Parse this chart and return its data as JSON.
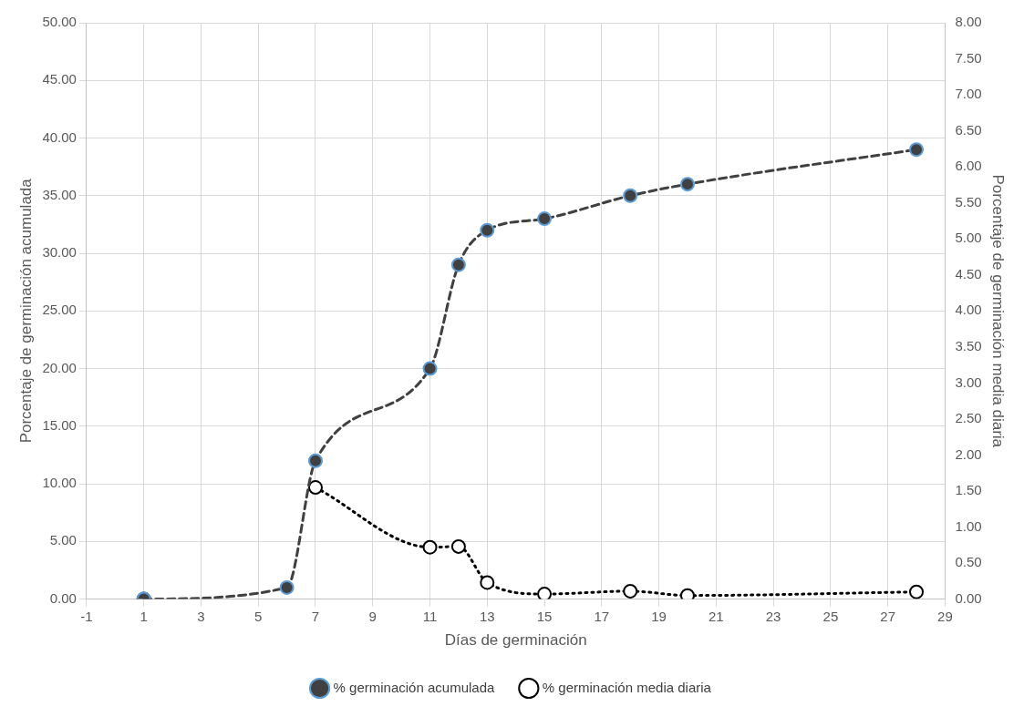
{
  "chart_data": {
    "type": "line",
    "xlabel": "Días de germinación",
    "ylabel": "Porcentaje de germinación acumulada",
    "y2label": "Porcentaje de germinación media diaria",
    "x": [
      1,
      6,
      7,
      11,
      12,
      13,
      15,
      18,
      20,
      28
    ],
    "series": [
      {
        "name": "% germinación acumulada",
        "color": "#404040",
        "line_style": "dashed",
        "values": [
          0,
          1,
          12,
          20,
          29,
          32,
          33,
          35,
          36,
          39
        ]
      },
      {
        "name": "% germinación media diaria",
        "color": "#000000",
        "line_style": "dotted",
        "axis": "y2",
        "values": [
          0,
          null,
          1.55,
          0.72,
          0.73,
          0.23,
          0.07,
          0.11,
          0.05,
          0.1
        ]
      }
    ],
    "xlim": [
      -1,
      29
    ],
    "xticks": [
      -1,
      1,
      3,
      5,
      7,
      9,
      11,
      13,
      15,
      17,
      19,
      21,
      23,
      25,
      27,
      29
    ],
    "ylim": [
      0,
      50
    ],
    "yticks": [
      {
        "value": 0,
        "label": "0.00"
      },
      {
        "value": 5,
        "label": "5.00"
      },
      {
        "value": 10,
        "label": "10.00"
      },
      {
        "value": 15,
        "label": "15.00"
      },
      {
        "value": 20,
        "label": "20.00"
      },
      {
        "value": 25,
        "label": "25.00"
      },
      {
        "value": 30,
        "label": "30.00"
      },
      {
        "value": 35,
        "label": "35.00"
      },
      {
        "value": 40,
        "label": "40.00"
      },
      {
        "value": 45,
        "label": "45.00"
      },
      {
        "value": 50,
        "label": "50.00"
      }
    ],
    "y2lim": [
      0,
      8
    ],
    "y2ticks": [
      {
        "value": 0,
        "label": "0.00"
      },
      {
        "value": 0.5,
        "label": "0.50"
      },
      {
        "value": 1,
        "label": "1.00"
      },
      {
        "value": 1.5,
        "label": "1.50"
      },
      {
        "value": 2,
        "label": "2.00"
      },
      {
        "value": 2.5,
        "label": "2.50"
      },
      {
        "value": 3,
        "label": "3.00"
      },
      {
        "value": 3.5,
        "label": "3.50"
      },
      {
        "value": 4,
        "label": "4.00"
      },
      {
        "value": 4.5,
        "label": "4.50"
      },
      {
        "value": 5,
        "label": "5.00"
      },
      {
        "value": 5.5,
        "label": "5.50"
      },
      {
        "value": 6,
        "label": "6.00"
      },
      {
        "value": 6.5,
        "label": "6.50"
      },
      {
        "value": 7,
        "label": "7.00"
      },
      {
        "value": 7.5,
        "label": "7.50"
      },
      {
        "value": 8,
        "label": "8.00"
      }
    ],
    "grid": true,
    "legend": "bottom",
    "marker": "circle"
  }
}
